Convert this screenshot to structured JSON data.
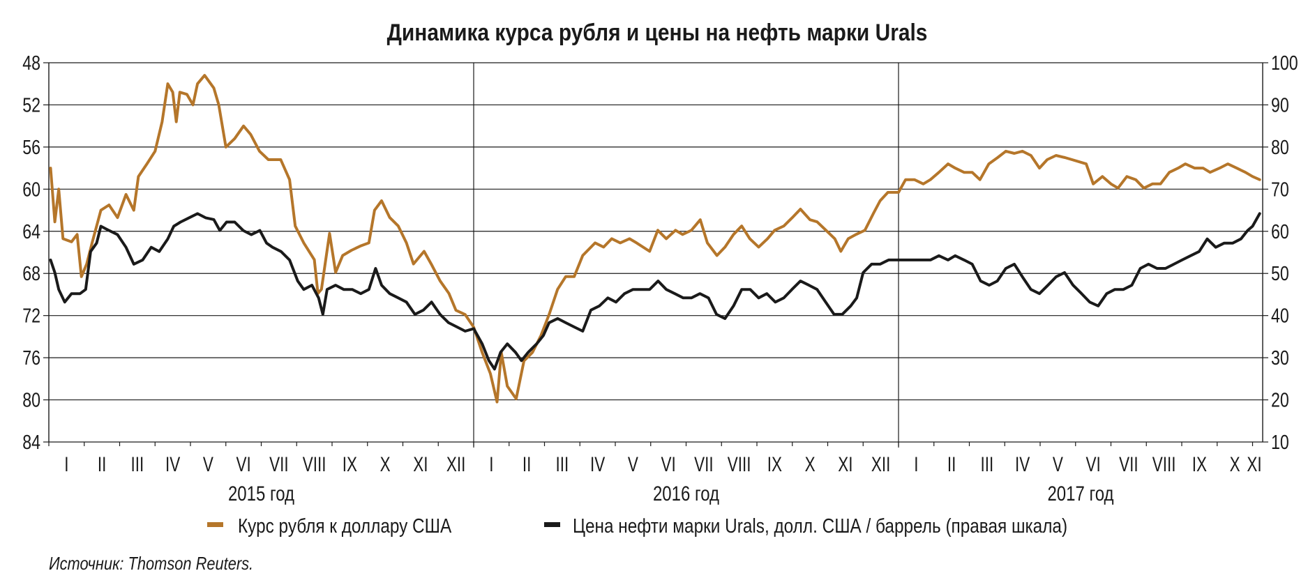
{
  "chart_data": {
    "type": "line",
    "title": "Динамика курса рубля и цены на нефть марки Urals",
    "x_unit": "months since start of 2015",
    "xlim": [
      0,
      34.3
    ],
    "left_axis": {
      "ticks": [
        "48",
        "52",
        "56",
        "60",
        "64",
        "68",
        "72",
        "76",
        "80",
        "84"
      ],
      "range": [
        48,
        84
      ],
      "inverted": true
    },
    "right_axis": {
      "ticks": [
        "100",
        "90",
        "80",
        "70",
        "60",
        "50",
        "40",
        "30",
        "20",
        "10"
      ],
      "range": [
        10,
        100
      ]
    },
    "months": [
      "I",
      "II",
      "III",
      "IV",
      "V",
      "VI",
      "VII",
      "VIII",
      "IX",
      "X",
      "XI",
      "XII",
      "I",
      "II",
      "III",
      "IV",
      "V",
      "VI",
      "VII",
      "VIII",
      "IX",
      "X",
      "XI",
      "XII",
      "I",
      "II",
      "III",
      "IV",
      "V",
      "VI",
      "VII",
      "VIII",
      "IX",
      "X",
      "XI"
    ],
    "years": [
      "2015 год",
      "2016 год",
      "2017 год"
    ],
    "grid": "horizontal at ticks, vertical at year boundaries",
    "legend_position": "bottom",
    "series": [
      {
        "name": "Курс рубля к доллару США",
        "axis": "left",
        "color": "#b5762a",
        "x": [
          0.05,
          0.17,
          0.28,
          0.4,
          0.64,
          0.8,
          0.92,
          1.07,
          1.23,
          1.47,
          1.7,
          1.94,
          2.18,
          2.4,
          2.53,
          2.77,
          3.0,
          3.2,
          3.36,
          3.5,
          3.6,
          3.7,
          3.9,
          4.07,
          4.2,
          4.4,
          4.66,
          4.8,
          5.0,
          5.25,
          5.5,
          5.7,
          5.95,
          6.2,
          6.55,
          6.8,
          6.96,
          7.2,
          7.5,
          7.6,
          7.7,
          7.93,
          8.1,
          8.3,
          8.55,
          8.8,
          9.04,
          9.2,
          9.4,
          9.63,
          9.87,
          10.1,
          10.3,
          10.6,
          10.8,
          11.05,
          11.3,
          11.5,
          11.76,
          12.0,
          12.24,
          12.47,
          12.66,
          12.78,
          12.95,
          13.2,
          13.42,
          13.66,
          13.9,
          14.13,
          14.37,
          14.6,
          14.84,
          15.08,
          15.43,
          15.67,
          15.9,
          16.14,
          16.4,
          16.6,
          16.97,
          17.2,
          17.44,
          17.7,
          17.9,
          18.15,
          18.4,
          18.6,
          18.87,
          19.1,
          19.34,
          19.57,
          19.8,
          20.05,
          20.3,
          20.5,
          20.76,
          21.0,
          21.23,
          21.5,
          21.7,
          21.95,
          22.2,
          22.37,
          22.58,
          22.8,
          23.05,
          23.29,
          23.48,
          23.7,
          24.0,
          24.2,
          24.45,
          24.7,
          24.9,
          25.14,
          25.4,
          25.6,
          25.85,
          26.08,
          26.3,
          26.55,
          26.8,
          27.03,
          27.27,
          27.5,
          27.74,
          27.98,
          28.2,
          28.45,
          28.7,
          28.9,
          29.3,
          29.5,
          29.76,
          30.0,
          30.2,
          30.45,
          30.7,
          30.93,
          31.17,
          31.4,
          31.65,
          31.9,
          32.1,
          32.36,
          32.6,
          32.8,
          33.07,
          33.3,
          33.55,
          33.8,
          34.0,
          34.2
        ],
        "values": [
          58.0,
          63.1,
          60.0,
          64.7,
          65.0,
          64.3,
          68.3,
          67.1,
          65.0,
          62.0,
          61.5,
          62.7,
          60.5,
          62.0,
          58.8,
          57.6,
          56.4,
          53.6,
          50.0,
          50.8,
          53.6,
          50.8,
          51.0,
          52.0,
          50.0,
          49.2,
          50.4,
          52.0,
          56.0,
          55.2,
          54.0,
          54.8,
          56.4,
          57.2,
          57.2,
          59.1,
          63.5,
          65.1,
          66.7,
          69.9,
          69.5,
          64.2,
          67.9,
          66.3,
          65.8,
          65.4,
          65.1,
          62.0,
          61.1,
          62.7,
          63.5,
          65.1,
          67.1,
          65.9,
          67.1,
          68.7,
          69.9,
          71.5,
          71.9,
          73.1,
          75.5,
          77.5,
          80.2,
          75.5,
          78.7,
          79.9,
          76.3,
          75.5,
          73.9,
          71.9,
          69.5,
          68.3,
          68.3,
          66.3,
          65.1,
          65.5,
          64.7,
          65.1,
          64.7,
          65.1,
          65.9,
          63.9,
          64.7,
          63.9,
          64.3,
          63.9,
          62.9,
          65.1,
          66.3,
          65.5,
          64.3,
          63.5,
          64.7,
          65.5,
          64.7,
          63.9,
          63.5,
          62.7,
          61.9,
          62.9,
          63.1,
          63.9,
          64.7,
          65.9,
          64.7,
          64.3,
          63.9,
          62.3,
          61.1,
          60.3,
          60.3,
          59.1,
          59.1,
          59.5,
          59.1,
          58.4,
          57.6,
          58.0,
          58.4,
          58.4,
          59.1,
          57.6,
          57.0,
          56.4,
          56.6,
          56.4,
          56.8,
          58.0,
          57.2,
          56.8,
          57.0,
          57.2,
          57.6,
          59.5,
          58.8,
          59.5,
          59.9,
          58.8,
          59.1,
          59.9,
          59.5,
          59.5,
          58.4,
          58.0,
          57.6,
          58.0,
          58.0,
          58.4,
          58.0,
          57.6,
          58.0,
          58.4,
          58.8,
          59.1
        ]
      },
      {
        "name": "Цена нефти марки Urals, долл. США / баррель (правая шкала)",
        "axis": "right",
        "color": "#1a1a1a",
        "x": [
          0.05,
          0.17,
          0.28,
          0.45,
          0.64,
          0.88,
          1.04,
          1.18,
          1.35,
          1.47,
          1.7,
          1.94,
          2.18,
          2.4,
          2.65,
          2.89,
          3.12,
          3.36,
          3.53,
          3.72,
          3.96,
          4.2,
          4.43,
          4.66,
          4.83,
          5.02,
          5.25,
          5.49,
          5.72,
          5.96,
          6.15,
          6.32,
          6.56,
          6.8,
          7.03,
          7.2,
          7.43,
          7.62,
          7.74,
          7.86,
          8.1,
          8.33,
          8.57,
          8.81,
          9.04,
          9.23,
          9.4,
          9.63,
          9.87,
          10.1,
          10.34,
          10.58,
          10.81,
          11.05,
          11.29,
          11.53,
          11.76,
          12.0,
          12.24,
          12.43,
          12.59,
          12.76,
          12.95,
          13.18,
          13.35,
          13.54,
          13.78,
          13.97,
          14.13,
          14.37,
          14.6,
          14.84,
          15.08,
          15.31,
          15.55,
          15.79,
          16.02,
          16.26,
          16.5,
          16.73,
          16.97,
          17.21,
          17.44,
          17.68,
          17.92,
          18.15,
          18.39,
          18.63,
          18.86,
          19.1,
          19.34,
          19.57,
          19.81,
          20.05,
          20.28,
          20.52,
          20.76,
          20.99,
          21.23,
          21.47,
          21.7,
          21.94,
          22.18,
          22.41,
          22.65,
          22.82,
          23.0,
          23.24,
          23.48,
          23.72,
          24.0,
          24.2,
          24.45,
          24.7,
          24.9,
          25.14,
          25.4,
          25.6,
          25.85,
          26.08,
          26.32,
          26.56,
          26.79,
          27.03,
          27.27,
          27.5,
          27.74,
          27.98,
          28.22,
          28.45,
          28.69,
          28.93,
          29.17,
          29.4,
          29.64,
          29.88,
          30.11,
          30.35,
          30.59,
          30.83,
          31.06,
          31.3,
          31.54,
          31.78,
          32.01,
          32.25,
          32.49,
          32.72,
          32.96,
          33.2,
          33.44,
          33.67,
          33.86,
          34.0,
          34.2
        ],
        "values": [
          53.2,
          50.2,
          46.2,
          43.2,
          45.2,
          45.2,
          46.2,
          55.2,
          57.2,
          61.2,
          60.2,
          59.2,
          56.2,
          52.2,
          53.2,
          56.2,
          55.2,
          58.2,
          61.2,
          62.2,
          63.2,
          64.2,
          63.2,
          62.8,
          60.2,
          62.2,
          62.2,
          60.2,
          59.2,
          60.2,
          57.2,
          56.2,
          55.2,
          53.2,
          48.2,
          46.2,
          47.2,
          44.2,
          40.3,
          46.2,
          47.2,
          46.2,
          46.2,
          45.2,
          46.2,
          51.2,
          47.2,
          45.2,
          44.2,
          43.2,
          40.3,
          41.3,
          43.2,
          40.3,
          38.3,
          37.3,
          36.3,
          36.9,
          33.3,
          29.3,
          27.3,
          31.3,
          33.3,
          31.3,
          29.3,
          31.3,
          33.3,
          35.3,
          38.3,
          39.3,
          38.3,
          37.3,
          36.3,
          41.3,
          42.3,
          44.2,
          43.2,
          45.2,
          46.2,
          46.2,
          46.2,
          48.2,
          46.2,
          45.2,
          44.2,
          44.2,
          45.2,
          44.2,
          40.3,
          39.3,
          42.3,
          46.2,
          46.2,
          44.2,
          45.2,
          43.2,
          44.2,
          46.2,
          48.2,
          47.2,
          46.2,
          43.2,
          40.3,
          40.3,
          42.3,
          44.2,
          50.2,
          52.2,
          52.2,
          53.2,
          53.2,
          53.2,
          53.2,
          53.2,
          53.2,
          54.2,
          53.2,
          54.2,
          53.2,
          52.2,
          48.2,
          47.2,
          48.2,
          51.2,
          52.2,
          49.2,
          46.2,
          45.2,
          47.2,
          49.2,
          50.2,
          47.2,
          45.2,
          43.2,
          42.3,
          45.2,
          46.2,
          46.2,
          47.2,
          51.2,
          52.2,
          51.2,
          51.2,
          52.2,
          53.2,
          54.2,
          55.2,
          58.2,
          56.2,
          57.2,
          57.2,
          58.2,
          60.2,
          61.2,
          64.2
        ]
      }
    ]
  },
  "legend": {
    "ruble_label": "Курс рубля к доллару США",
    "oil_label": "Цена нефти марки Urals, долл. США / баррель (правая шкала)"
  },
  "source": "Источник: Thomson Reuters."
}
